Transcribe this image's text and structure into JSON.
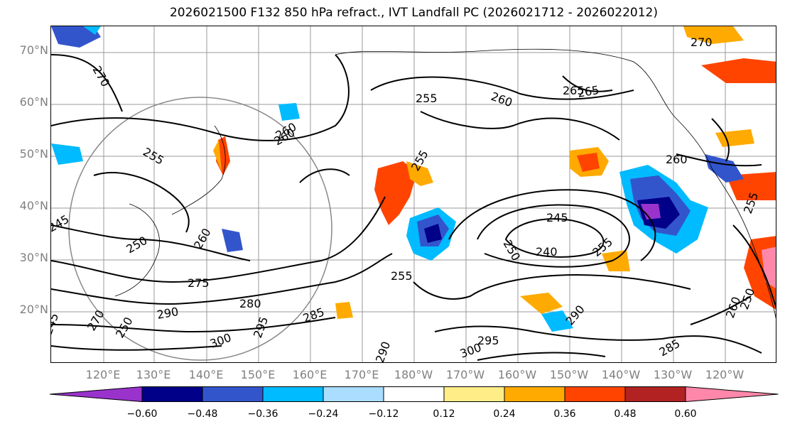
{
  "title": "2026021500 F132 850 hPa refract., IVT Landfall PC (2026021712 - 2026022012)",
  "lat_labels": [
    "70°N",
    "60°N",
    "50°N",
    "40°N",
    "30°N",
    "20°N"
  ],
  "lon_labels": [
    "120°E",
    "130°E",
    "140°E",
    "150°E",
    "160°E",
    "170°E",
    "180°W",
    "170°W",
    "160°W",
    "150°W",
    "140°W",
    "130°W",
    "120°W"
  ],
  "contour_labels": [
    "270",
    "270",
    "255",
    "260",
    "265",
    "255",
    "260",
    "255",
    "245",
    "260",
    "265",
    "255",
    "245",
    "240",
    "250",
    "255",
    "275",
    "280",
    "285",
    "290",
    "295",
    "300",
    "290",
    "295",
    "300",
    "285",
    "290",
    "260",
    "260",
    "255",
    "245",
    "250",
    "260",
    "270",
    "250",
    "250"
  ],
  "colorbar": {
    "colors": [
      "#9933cc",
      "#000088",
      "#3355cc",
      "#00bbff",
      "#aaddff",
      "#ffffff",
      "#ffee88",
      "#ffaa00",
      "#ff4400",
      "#b22222",
      "#ff88aa"
    ],
    "labels": [
      "−0.60",
      "−0.48",
      "−0.36",
      "−0.24",
      "−0.12",
      "0.12",
      "0.24",
      "0.36",
      "0.48",
      "0.60"
    ]
  }
}
